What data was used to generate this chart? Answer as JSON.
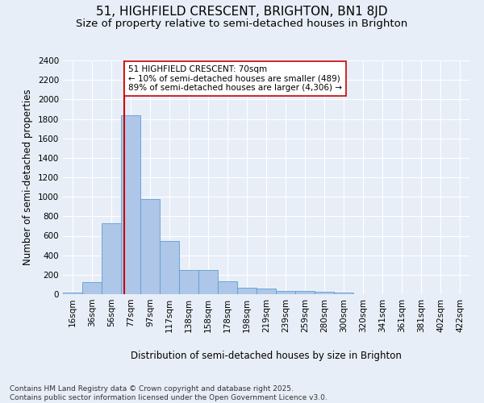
{
  "title_line1": "51, HIGHFIELD CRESCENT, BRIGHTON, BN1 8JD",
  "title_line2": "Size of property relative to semi-detached houses in Brighton",
  "xlabel": "Distribution of semi-detached houses by size in Brighton",
  "ylabel": "Number of semi-detached properties",
  "footer": "Contains HM Land Registry data © Crown copyright and database right 2025.\nContains public sector information licensed under the Open Government Licence v3.0.",
  "bin_labels": [
    "16sqm",
    "36sqm",
    "56sqm",
    "77sqm",
    "97sqm",
    "117sqm",
    "138sqm",
    "158sqm",
    "178sqm",
    "198sqm",
    "219sqm",
    "239sqm",
    "259sqm",
    "280sqm",
    "300sqm",
    "320sqm",
    "341sqm",
    "361sqm",
    "381sqm",
    "402sqm",
    "422sqm"
  ],
  "bar_values": [
    20,
    125,
    730,
    1840,
    980,
    550,
    250,
    250,
    130,
    70,
    55,
    35,
    30,
    25,
    20,
    0,
    0,
    0,
    0,
    0,
    0
  ],
  "bar_color": "#aec6e8",
  "bar_edge_color": "#5a9fd4",
  "vline_color": "#cc0000",
  "annotation_text": "51 HIGHFIELD CRESCENT: 70sqm\n← 10% of semi-detached houses are smaller (489)\n89% of semi-detached houses are larger (4,306) →",
  "ylim": [
    0,
    2400
  ],
  "yticks": [
    0,
    200,
    400,
    600,
    800,
    1000,
    1200,
    1400,
    1600,
    1800,
    2000,
    2200,
    2400
  ],
  "bg_color": "#e8eef7",
  "annotation_box_color": "#ffffff",
  "annotation_box_edge": "#cc0000",
  "title_fontsize": 11,
  "subtitle_fontsize": 9.5,
  "axis_label_fontsize": 8.5,
  "tick_fontsize": 7.5,
  "annotation_fontsize": 7.5,
  "footer_fontsize": 6.5
}
